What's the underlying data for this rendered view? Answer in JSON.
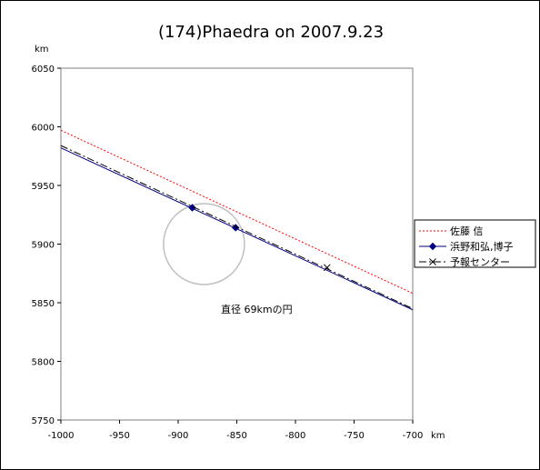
{
  "chart_data": {
    "type": "line",
    "title": "(174)Phaedra on 2007.9.23",
    "xlabel": "km",
    "ylabel": "km",
    "xlim": [
      -1000,
      -700
    ],
    "ylim": [
      5750,
      6050
    ],
    "x_ticks": [
      -1000,
      -950,
      -900,
      -850,
      -800,
      -750,
      -700
    ],
    "y_ticks": [
      5750,
      5800,
      5850,
      5900,
      5950,
      6000,
      6050
    ],
    "grid": false,
    "legend_position": "right",
    "series": [
      {
        "name": "佐藤 信",
        "style": "dotted",
        "color": "#ff0000",
        "marker": "none",
        "x": [
          -1000,
          -700
        ],
        "y": [
          5997,
          5858
        ]
      },
      {
        "name": "浜野和弘,博子",
        "style": "solid",
        "color": "#000080",
        "marker": "diamond",
        "x": [
          -1000,
          -700
        ],
        "y": [
          5982,
          5844
        ],
        "points": [
          {
            "x": -888,
            "y": 5931
          },
          {
            "x": -851,
            "y": 5914
          }
        ]
      },
      {
        "name": "予報センター",
        "style": "dashdot",
        "color": "#000000",
        "marker": "x",
        "x": [
          -1000,
          -700
        ],
        "y": [
          5984,
          5845
        ],
        "points": [
          {
            "x": -773,
            "y": 5880
          }
        ]
      }
    ],
    "circle": {
      "center_x": -878,
      "center_y": 5900,
      "diameter_km": 69,
      "color": "#c0c0c0"
    },
    "annotation": "直径 69kmの円"
  }
}
